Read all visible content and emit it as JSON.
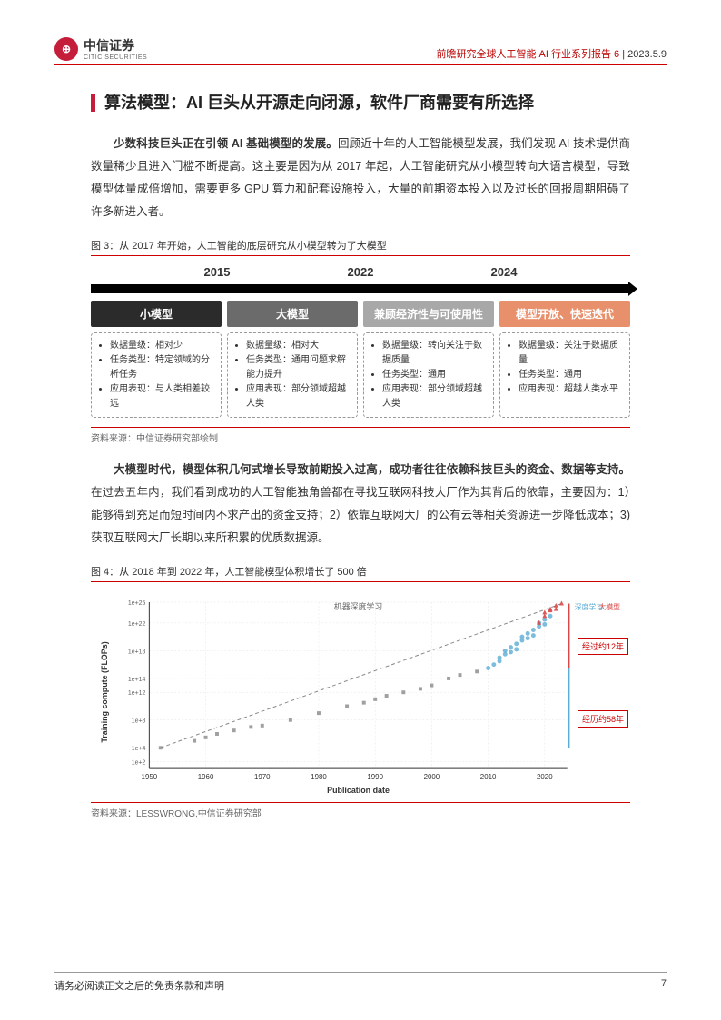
{
  "header": {
    "company_cn": "中信证券",
    "company_en": "CITIC SECURITIES",
    "series": "前瞻研究全球人工智能 AI 行业系列报告 6",
    "date": "2023.5.9"
  },
  "section_title": "算法模型：AI 巨头从开源走向闭源，软件厂商需要有所选择",
  "para1_bold": "少数科技巨头正在引领 AI 基础模型的发展。",
  "para1_rest": "回顾近十年的人工智能模型发展，我们发现 AI 技术提供商数量稀少且进入门槛不断提高。这主要是因为从 2017 年起，人工智能研究从小模型转向大语言模型，导致模型体量成倍增加，需要更多 GPU 算力和配套设施投入，大量的前期资本投入以及过长的回报周期阻碍了许多新进入者。",
  "fig3": {
    "title": "图 3：从 2017 年开始，人工智能的底层研究从小模型转为了大模型",
    "years": [
      "2015",
      "2022",
      "2024"
    ],
    "phases": [
      {
        "label": "小模型",
        "bg": "#2b2b2b",
        "bullets": [
          "数据量级：相对少",
          "任务类型：特定领域的分析任务",
          "应用表现：与人类相差较远"
        ]
      },
      {
        "label": "大模型",
        "bg": "#6b6b6b",
        "bullets": [
          "数据量级：相对大",
          "任务类型：通用问题求解能力提升",
          "应用表现：部分领域超越人类"
        ]
      },
      {
        "label": "兼顾经济性与可使用性",
        "bg": "#a8a8a8",
        "bullets": [
          "数据量级：转向关注于数据质量",
          "任务类型：通用",
          "应用表现：部分领域超越人类"
        ]
      },
      {
        "label": "模型开放、快速迭代",
        "bg": "#e8906b",
        "bullets": [
          "数据量级：关注于数据质量",
          "任务类型：通用",
          "应用表现：超越人类水平"
        ]
      }
    ],
    "source": "资料来源：中信证券研究部绘制"
  },
  "para2_bold": "大模型时代，模型体积几何式增长导致前期投入过高，成功者往往依赖科技巨头的资金、数据等支持。",
  "para2_rest": "在过去五年内，我们看到成功的人工智能独角兽都在寻找互联网科技大厂作为其背后的依靠，主要因为：1）能够得到充足而短时间内不求产出的资金支持；2）依靠互联网大厂的公有云等相关资源进一步降低成本；3)获取互联网大厂长期以来所积累的优质数据源。",
  "fig4": {
    "title": "图 4：从 2018 年到 2022 年，人工智能模型体积增长了 500 倍",
    "ylabel": "Training compute (FLOPs)",
    "xlabel": "Publication date",
    "chart_title": "机器深度学习",
    "legend": [
      "深度学习",
      "大模型"
    ],
    "anno1": "经过约12年",
    "anno2": "经历约58年",
    "xlim": [
      1950,
      2024
    ],
    "ylim_log": [
      10.0,
      1e+25
    ],
    "yticks": [
      "1e+2",
      "1e+4",
      "1e+8",
      "1e+12",
      "1e+14",
      "1e+18",
      "1e+22",
      "1e+25"
    ],
    "xticks": [
      "1950",
      "1960",
      "1970",
      "1980",
      "1990",
      "2000",
      "2010",
      "2020"
    ],
    "colors": {
      "pre": "#888888",
      "deep": "#5bacd6",
      "large": "#d94848",
      "trend": "#888888",
      "grid": "#e5e5e5"
    },
    "scatter_pre": [
      [
        1952,
        4
      ],
      [
        1958,
        5
      ],
      [
        1960,
        5.5
      ],
      [
        1962,
        6
      ],
      [
        1965,
        6.5
      ],
      [
        1968,
        7
      ],
      [
        1970,
        7.2
      ],
      [
        1975,
        8
      ],
      [
        1980,
        9
      ],
      [
        1985,
        10
      ],
      [
        1988,
        10.5
      ],
      [
        1990,
        11
      ],
      [
        1992,
        11.5
      ],
      [
        1995,
        12
      ],
      [
        1998,
        12.5
      ],
      [
        2000,
        13
      ],
      [
        2003,
        14
      ],
      [
        2005,
        14.5
      ],
      [
        2008,
        15
      ]
    ],
    "scatter_deep": [
      [
        2010,
        15.5
      ],
      [
        2011,
        16
      ],
      [
        2012,
        17
      ],
      [
        2012,
        16.5
      ],
      [
        2013,
        17.5
      ],
      [
        2013,
        18
      ],
      [
        2014,
        18.5
      ],
      [
        2014,
        17.8
      ],
      [
        2015,
        19
      ],
      [
        2015,
        18.2
      ],
      [
        2016,
        19.5
      ],
      [
        2016,
        20
      ],
      [
        2017,
        20.5
      ],
      [
        2017,
        19.8
      ],
      [
        2018,
        21
      ],
      [
        2018,
        20.2
      ],
      [
        2019,
        21.5
      ],
      [
        2019,
        22
      ],
      [
        2020,
        22.5
      ],
      [
        2020,
        21.8
      ],
      [
        2021,
        23
      ]
    ],
    "scatter_large": [
      [
        2019,
        22
      ],
      [
        2020,
        23
      ],
      [
        2020,
        23.5
      ],
      [
        2021,
        24
      ],
      [
        2021,
        23.8
      ],
      [
        2022,
        24.5
      ],
      [
        2022,
        24
      ],
      [
        2023,
        24.8
      ]
    ],
    "source": "资料来源：LESSWRONG,中信证券研究部"
  },
  "footer": {
    "disclaimer": "请务必阅读正文之后的免责条款和声明",
    "page": "7"
  }
}
